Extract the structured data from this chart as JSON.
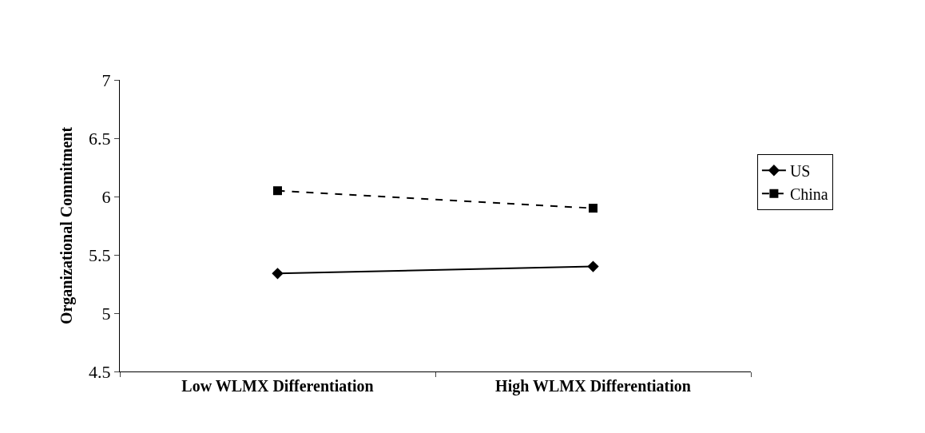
{
  "chart_data": {
    "type": "line",
    "ylabel": "Organizational Commitment",
    "categories": [
      "Low WLMX Differentiation",
      "High WLMX Differentiation"
    ],
    "series": [
      {
        "name": "US",
        "color": "#000000",
        "values": [
          5.34,
          5.4
        ],
        "marker": "diamond",
        "line_style": "solid"
      },
      {
        "name": "China",
        "color": "#000000",
        "values": [
          6.05,
          5.9
        ],
        "marker": "square",
        "line_style": "dashed"
      }
    ],
    "ylim": [
      4.5,
      7
    ],
    "yticks": [
      4.5,
      5,
      5.5,
      6,
      6.5,
      7
    ],
    "grid": false,
    "legend": "right"
  }
}
